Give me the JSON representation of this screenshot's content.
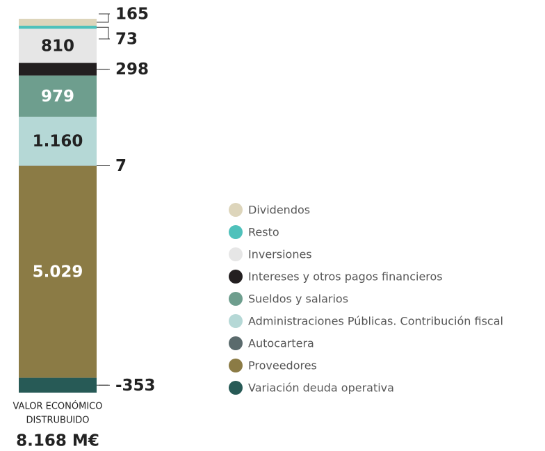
{
  "chart_data": {
    "type": "stacked_bar",
    "series": [
      {
        "name": "Dividendos",
        "color": "#ddd5bb",
        "values": [
          165
        ],
        "value_labels": [
          "165"
        ]
      },
      {
        "name": "Resto",
        "color": "#4fc1bb",
        "values": [
          73
        ],
        "value_labels": [
          "73"
        ]
      },
      {
        "name": "Inversiones",
        "color": "#e6e6e6",
        "values": [
          810
        ],
        "value_labels": [
          "810"
        ]
      },
      {
        "name": "Intereses y otros pagos financieros",
        "color": "#231f20",
        "values": [
          298
        ],
        "value_labels": [
          "298"
        ]
      },
      {
        "name": "Sueldos y salarios",
        "color": "#6e9e8e",
        "values": [
          979
        ],
        "value_labels": [
          "979"
        ]
      },
      {
        "name": "Administraciones Públicas. Contribución fiscal",
        "color": "#b5d8d6",
        "values": [
          1160
        ],
        "value_labels": [
          "1.160"
        ]
      },
      {
        "name": "Autocartera",
        "color": "#5a6a6c",
        "values": [
          7
        ],
        "value_labels": [
          "7"
        ]
      },
      {
        "name": "Proveedores",
        "color": "#8b7b45",
        "values": [
          5029
        ],
        "value_labels": [
          "5.029"
        ]
      },
      {
        "name": "Variación deuda operativa",
        "color": "#275a56",
        "values": [
          -353
        ],
        "value_labels": [
          "-353"
        ]
      }
    ],
    "ylim": [
      -353,
      8521
    ],
    "caption": [
      "VALOR ECONÓMICO",
      "DISTRUBUIDO"
    ],
    "total_label": "8.168 M€"
  }
}
